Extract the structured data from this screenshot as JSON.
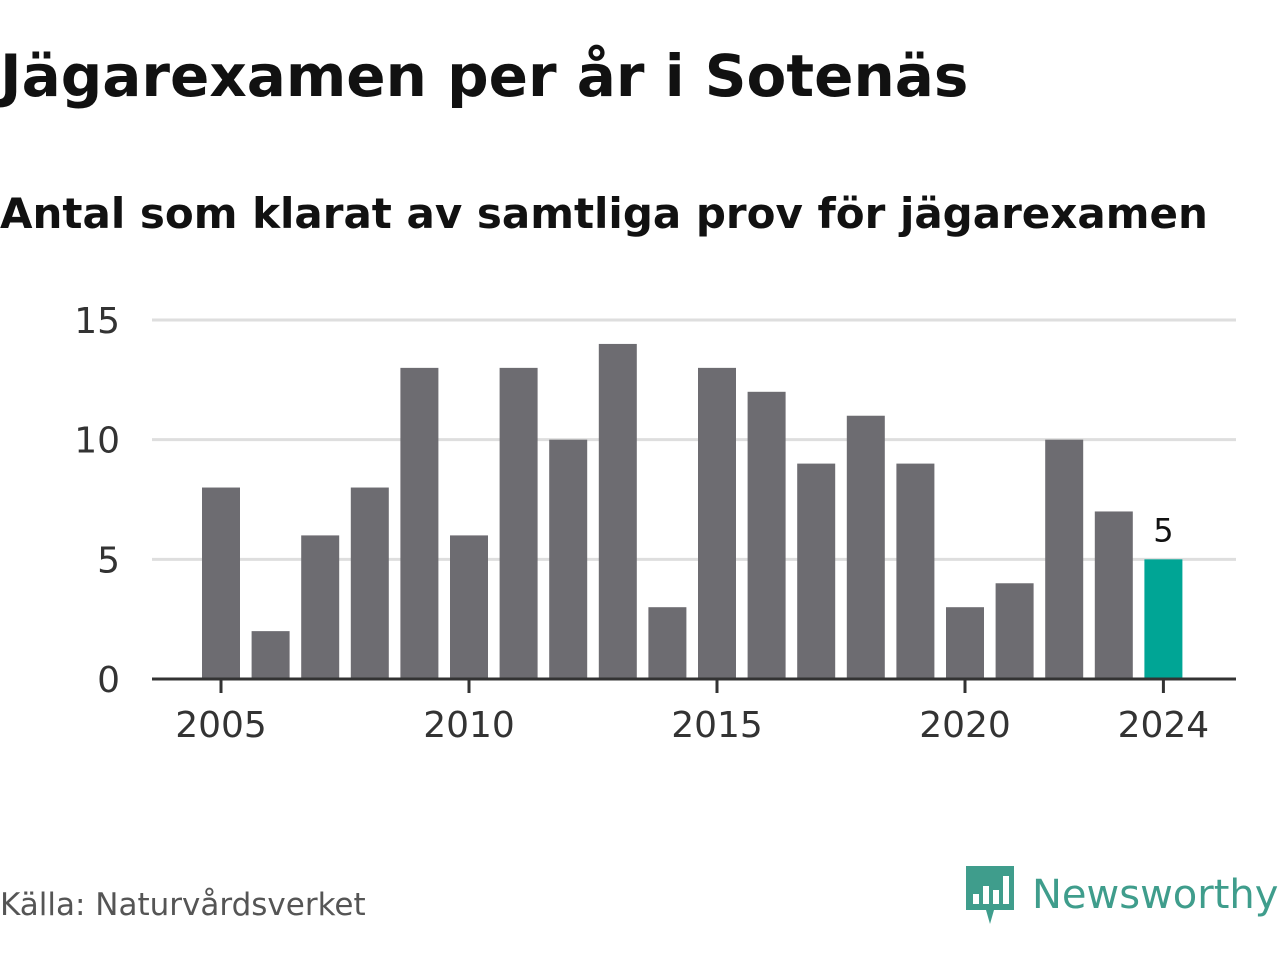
{
  "title": "Jägarexamen per år i Sotenäs",
  "subtitle": "Antal som klarat av samtliga prov för jägarexamen",
  "source": "Källa: Naturvårdsverket",
  "brand": {
    "name": "Newsworthy",
    "icon": "newsworthy-logo-icon",
    "color": "#3f9d8c"
  },
  "colors": {
    "bar": "#6d6c71",
    "highlight": "#00a595",
    "grid": "#dedede",
    "axis": "#333333",
    "tick_text": "#333333"
  },
  "chart_data": {
    "type": "bar",
    "categories": [
      "2005",
      "2006",
      "2007",
      "2008",
      "2009",
      "2010",
      "2011",
      "2012",
      "2013",
      "2014",
      "2015",
      "2016",
      "2017",
      "2018",
      "2019",
      "2020",
      "2021",
      "2022",
      "2023",
      "2024"
    ],
    "values": [
      8,
      2,
      6,
      8,
      13,
      6,
      13,
      10,
      14,
      3,
      13,
      12,
      9,
      11,
      9,
      3,
      4,
      10,
      7,
      5
    ],
    "x_tick_labels": [
      "2005",
      "2010",
      "2015",
      "2020",
      "2024"
    ],
    "y_ticks": [
      0,
      5,
      10,
      15
    ],
    "ylim": [
      0,
      15
    ],
    "grid": true,
    "highlight_index": 19,
    "data_labels": [
      {
        "category": "2024",
        "value": 5,
        "text": "5"
      }
    ],
    "title": "Jägarexamen per år i Sotenäs",
    "subtitle": "Antal som klarat av samtliga prov för jägarexamen",
    "xlabel": "",
    "ylabel": ""
  }
}
